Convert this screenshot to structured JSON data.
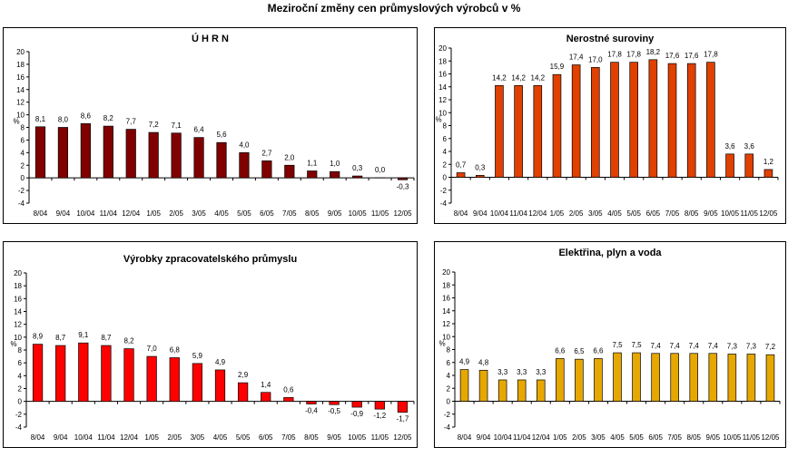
{
  "title": "Meziroční změny cen průmyslových výrobců v %",
  "chart_data": [
    {
      "type": "bar",
      "title": "Ú H R N",
      "ylabel": "%",
      "ylim": [
        -4,
        20
      ],
      "yticks": [
        -4,
        -2,
        0,
        2,
        4,
        6,
        8,
        10,
        12,
        14,
        16,
        18,
        20
      ],
      "color": "#800000",
      "categories": [
        "8/04",
        "9/04",
        "10/04",
        "11/04",
        "12/04",
        "1/05",
        "2/05",
        "3/05",
        "4/05",
        "5/05",
        "6/05",
        "7/05",
        "8/05",
        "9/05",
        "10/05",
        "11/05",
        "12/05"
      ],
      "values": [
        8.1,
        8.0,
        8.6,
        8.2,
        7.7,
        7.2,
        7.1,
        6.4,
        5.6,
        4.0,
        2.7,
        2.0,
        1.1,
        1.0,
        0.3,
        0.0,
        -0.3
      ],
      "labels": [
        "8,1",
        "8,0",
        "8,6",
        "8,2",
        "7,7",
        "7,2",
        "7,1",
        "6,4",
        "5,6",
        "4,0",
        "2,7",
        "2,0",
        "1,1",
        "1,0",
        "0,3",
        "0,0",
        "-0,3"
      ]
    },
    {
      "type": "bar",
      "title": "Nerostné suroviny",
      "ylabel": "%",
      "ylim": [
        -4,
        20
      ],
      "yticks": [
        -4,
        -2,
        0,
        2,
        4,
        6,
        8,
        10,
        12,
        14,
        16,
        18,
        20
      ],
      "color": "#E04000",
      "categories": [
        "8/04",
        "9/04",
        "10/04",
        "11/04",
        "12/04",
        "1/05",
        "2/05",
        "3/05",
        "4/05",
        "5/05",
        "6/05",
        "7/05",
        "8/05",
        "9/05",
        "10/05",
        "11/05",
        "12/05"
      ],
      "values": [
        0.7,
        0.3,
        14.2,
        14.2,
        14.2,
        15.9,
        17.4,
        17.0,
        17.8,
        17.8,
        18.2,
        17.6,
        17.6,
        17.8,
        3.6,
        3.6,
        1.2
      ],
      "labels": [
        "0,7",
        "0,3",
        "14,2",
        "14,2",
        "14,2",
        "15,9",
        "17,4",
        "17,0",
        "17,8",
        "17,8",
        "18,2",
        "17,6",
        "17,6",
        "17,8",
        "3,6",
        "3,6",
        "1,2"
      ]
    },
    {
      "type": "bar",
      "title": "Výrobky zpracovatelského průmyslu",
      "ylabel": "%",
      "ylim": [
        -4,
        20
      ],
      "yticks": [
        -4,
        -2,
        0,
        2,
        4,
        6,
        8,
        10,
        12,
        14,
        16,
        18,
        20
      ],
      "color": "#FF0000",
      "categories": [
        "8/04",
        "9/04",
        "10/04",
        "11/04",
        "12/04",
        "1/05",
        "2/05",
        "3/05",
        "4/05",
        "5/05",
        "6/05",
        "7/05",
        "8/05",
        "9/05",
        "10/05",
        "11/05",
        "12/05"
      ],
      "values": [
        8.9,
        8.7,
        9.1,
        8.7,
        8.2,
        7.0,
        6.8,
        5.9,
        4.9,
        2.9,
        1.4,
        0.6,
        -0.4,
        -0.5,
        -0.9,
        -1.2,
        -1.7
      ],
      "labels": [
        "8,9",
        "8,7",
        "9,1",
        "8,7",
        "8,2",
        "7,0",
        "6,8",
        "5,9",
        "4,9",
        "2,9",
        "1,4",
        "0,6",
        "-0,4",
        "-0,5",
        "-0,9",
        "-1,2",
        "-1,7"
      ]
    },
    {
      "type": "bar",
      "title": "Elektřina, plyn a voda",
      "ylabel": "%",
      "ylim": [
        -4,
        20
      ],
      "yticks": [
        -4,
        -2,
        0,
        2,
        4,
        6,
        8,
        10,
        12,
        14,
        16,
        18,
        20
      ],
      "color": "#E6A800",
      "categories": [
        "8/04",
        "9/04",
        "10/04",
        "11/04",
        "12/04",
        "1/05",
        "2/05",
        "3/05",
        "4/05",
        "5/05",
        "6/05",
        "7/05",
        "8/05",
        "9/05",
        "10/05",
        "11/05",
        "12/05"
      ],
      "values": [
        4.9,
        4.8,
        3.3,
        3.3,
        3.3,
        6.6,
        6.5,
        6.6,
        7.5,
        7.5,
        7.4,
        7.4,
        7.4,
        7.4,
        7.3,
        7.3,
        7.2
      ],
      "labels": [
        "4,9",
        "4,8",
        "3,3",
        "3,3",
        "3,3",
        "6,6",
        "6,5",
        "6,6",
        "7,5",
        "7,5",
        "7,4",
        "7,4",
        "7,4",
        "7,4",
        "7,3",
        "7,3",
        "7,2"
      ]
    }
  ]
}
